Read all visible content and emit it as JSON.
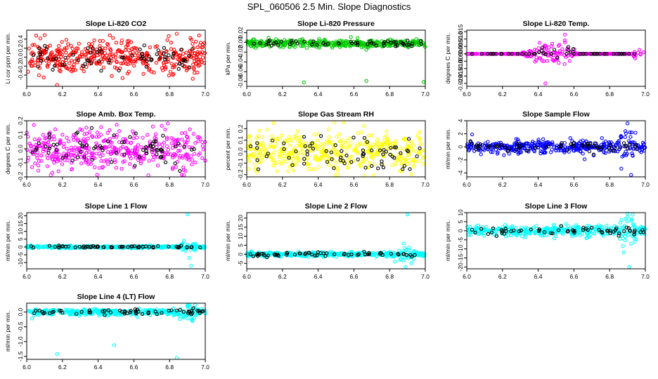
{
  "main_title": "SPL_060506  2.5 Min. Slope Diagnostics",
  "chart_data": [
    {
      "type": "scatter",
      "title": "Slope Li-820 CO2",
      "ylabel": "Li cor ppm per min.",
      "xlim": [
        6.0,
        7.0
      ],
      "xticks": [
        "6.0",
        "6.2",
        "6.4",
        "6.6",
        "6.8",
        "7.0"
      ],
      "ylim": [
        -0.65,
        0.6
      ],
      "yticks": [
        -0.4,
        -0.2,
        0.0,
        0.2,
        0.4
      ],
      "ytick_labels": [
        "-0.4",
        "-0.2",
        "0.0",
        "0.2",
        "0.4"
      ],
      "color": "#ff0000",
      "n_points": 420,
      "n_black": 70,
      "base_std": 0.18,
      "shape": "noise",
      "outliers": [
        {
          "x": 6.17,
          "y": -0.62
        },
        {
          "x": 6.84,
          "y": 0.52
        },
        {
          "x": 6.93,
          "y": -0.48
        }
      ]
    },
    {
      "type": "scatter",
      "title": "Slope Li-820 Pressure",
      "ylabel": "kPa per min.",
      "xlim": [
        6.0,
        7.0
      ],
      "xticks": [
        "6.0",
        "6.2",
        "6.4",
        "6.6",
        "6.8",
        "7.0"
      ],
      "ylim": [
        -0.09,
        0.025
      ],
      "yticks": [
        -0.08,
        -0.06,
        -0.04,
        -0.02,
        0.0,
        0.02
      ],
      "ytick_labels": [
        "-0.08",
        "-0.06",
        "-0.04",
        "-0.02",
        "0.00",
        "0.02"
      ],
      "color": "#00cc00",
      "n_points": 380,
      "n_black": 55,
      "base_std": 0.004,
      "shape": "pressure",
      "outliers": [
        {
          "x": 6.32,
          "y": -0.082
        },
        {
          "x": 6.67,
          "y": -0.079
        },
        {
          "x": 6.99,
          "y": -0.081
        }
      ]
    },
    {
      "type": "scatter",
      "title": "Slope Li-820 Temp.",
      "ylabel": "degrees C per min.",
      "xlim": [
        6.0,
        7.0
      ],
      "xticks": [
        "6.0",
        "6.2",
        "6.4",
        "6.6",
        "6.8",
        "7.0"
      ],
      "ylim": [
        -0.022,
        0.016
      ],
      "yticks": [
        -0.02,
        -0.015,
        -0.01,
        -0.005,
        0.0,
        0.005,
        0.01,
        0.015
      ],
      "ytick_labels": [
        "-0.020",
        "-0.015",
        "-0.010",
        "-0.005",
        "0.000",
        "0.005",
        "0.010",
        "0.015"
      ],
      "color": "#ff00ff",
      "n_points": 300,
      "n_black": 60,
      "base_std": 0.0,
      "shape": "temp",
      "outliers": [
        {
          "x": 6.44,
          "y": -0.02
        },
        {
          "x": 6.55,
          "y": 0.013
        }
      ]
    },
    {
      "type": "scatter",
      "title": "Slope Amb. Box Temp.",
      "ylabel": "degrees C per min.",
      "xlim": [
        6.0,
        7.0
      ],
      "xticks": [
        "6.0",
        "6.2",
        "6.4",
        "6.6",
        "6.8",
        "7.0"
      ],
      "ylim": [
        -0.2,
        0.2
      ],
      "yticks": [
        -0.2,
        -0.1,
        0.0,
        0.1,
        0.2
      ],
      "ytick_labels": [
        "-0.2",
        "-0.1",
        "0.0",
        "0.1",
        "0.2"
      ],
      "color": "#ff00ff",
      "n_points": 420,
      "n_black": 70,
      "base_std": 0.07,
      "shape": "noise",
      "outliers": [
        {
          "x": 6.04,
          "y": 0.17
        },
        {
          "x": 6.79,
          "y": 0.18
        }
      ]
    },
    {
      "type": "scatter",
      "title": "Slope Gas Stream RH",
      "ylabel": "percent per min.",
      "xlim": [
        6.0,
        7.0
      ],
      "xticks": [
        "6.0",
        "6.2",
        "6.4",
        "6.6",
        "6.8",
        "7.0"
      ],
      "ylim": [
        -0.22,
        0.27
      ],
      "yticks": [
        -0.2,
        -0.1,
        0.0,
        0.1,
        0.2
      ],
      "ytick_labels": [
        "-0.2",
        "-0.1",
        "0.0",
        "0.1",
        "0.2"
      ],
      "color": "#ffff00",
      "n_points": 420,
      "n_black": 70,
      "base_std": 0.09,
      "shape": "noise",
      "outliers": [
        {
          "x": 6.15,
          "y": 0.25
        },
        {
          "x": 6.66,
          "y": -0.21
        }
      ]
    },
    {
      "type": "scatter",
      "title": "Slope Sample Flow",
      "ylabel": "ml/min per min.",
      "xlim": [
        6.0,
        7.0
      ],
      "xticks": [
        "6.0",
        "6.2",
        "6.4",
        "6.6",
        "6.8",
        "7.0"
      ],
      "ylim": [
        -4.6,
        4.0
      ],
      "yticks": [
        -4,
        -2,
        0,
        2,
        4
      ],
      "ytick_labels": [
        "-4",
        "-2",
        "0",
        "2",
        "4"
      ],
      "color": "#0000ff",
      "n_points": 380,
      "n_black": 60,
      "base_std": 0.45,
      "shape": "flow",
      "outliers": [
        {
          "x": 6.9,
          "y": 3.6
        },
        {
          "x": 6.92,
          "y": -4.3
        },
        {
          "x": 6.03,
          "y": 1.9
        },
        {
          "x": 6.66,
          "y": -1.9
        }
      ]
    },
    {
      "type": "scatter",
      "title": "Slope Line 1 Flow",
      "ylabel": "ml/min per min.",
      "xlim": [
        6.0,
        7.0
      ],
      "xticks": [
        "6.0",
        "6.2",
        "6.4",
        "6.6",
        "6.8",
        "7.0"
      ],
      "ylim": [
        -14,
        22
      ],
      "yticks": [
        -10,
        -5,
        0,
        5,
        10,
        15,
        20
      ],
      "ytick_labels": [
        "-10",
        "-5",
        "0",
        "5",
        "10",
        "15",
        "20"
      ],
      "color": "#00ffff",
      "n_points": 380,
      "n_black": 60,
      "base_std": 0.4,
      "shape": "flow",
      "outliers": [
        {
          "x": 6.9,
          "y": 21
        },
        {
          "x": 6.92,
          "y": -12
        },
        {
          "x": 6.91,
          "y": -7
        },
        {
          "x": 6.88,
          "y": 4
        }
      ]
    },
    {
      "type": "scatter",
      "title": "Slope Line 2 Flow",
      "ylabel": "ml/min per min.",
      "xlim": [
        6.0,
        7.0
      ],
      "xticks": [
        "6.0",
        "6.2",
        "6.4",
        "6.6",
        "6.8",
        "7.0"
      ],
      "ylim": [
        -8,
        23
      ],
      "yticks": [
        -5,
        0,
        5,
        10,
        15,
        20
      ],
      "ytick_labels": [
        "-5",
        "0",
        "5",
        "10",
        "15",
        "20"
      ],
      "color": "#00ffff",
      "n_points": 380,
      "n_black": 60,
      "base_std": 0.6,
      "shape": "flow",
      "outliers": [
        {
          "x": 6.9,
          "y": 22
        },
        {
          "x": 6.89,
          "y": -7
        },
        {
          "x": 6.88,
          "y": 6
        },
        {
          "x": 6.83,
          "y": -4
        }
      ]
    },
    {
      "type": "scatter",
      "title": "Slope Line 3 Flow",
      "ylabel": "ml/min per min.",
      "xlim": [
        6.0,
        7.0
      ],
      "xticks": [
        "6.0",
        "6.2",
        "6.4",
        "6.6",
        "6.8",
        "7.0"
      ],
      "ylim": [
        -21,
        10
      ],
      "yticks": [
        -20,
        -15,
        -10,
        -5,
        0,
        5,
        10
      ],
      "ytick_labels": [
        "-20",
        "-15",
        "-10",
        "-5",
        "0",
        "5",
        "10"
      ],
      "color": "#00ffff",
      "n_points": 380,
      "n_black": 60,
      "base_std": 1.4,
      "shape": "flow",
      "outliers": [
        {
          "x": 6.9,
          "y": 9.5
        },
        {
          "x": 6.91,
          "y": -20
        },
        {
          "x": 6.88,
          "y": -12
        },
        {
          "x": 6.94,
          "y": -6
        }
      ]
    },
    {
      "type": "scatter",
      "title": "Slope Line 4 (LT) Flow",
      "ylabel": "ml/min per min.",
      "xlim": [
        6.0,
        7.0
      ],
      "xticks": [
        "6.0",
        "6.2",
        "6.4",
        "6.6",
        "6.8",
        "7.0"
      ],
      "ylim": [
        -1.6,
        0.3
      ],
      "yticks": [
        -1.5,
        -1.0,
        -0.5,
        0.0
      ],
      "ytick_labels": [
        "-1.5",
        "-1.0",
        "-0.5",
        "0.0"
      ],
      "color": "#00ffff",
      "n_points": 380,
      "n_black": 60,
      "base_std": 0.05,
      "shape": "flow",
      "outliers": [
        {
          "x": 6.17,
          "y": -1.42
        },
        {
          "x": 6.49,
          "y": -1.12
        },
        {
          "x": 6.84,
          "y": -1.55
        },
        {
          "x": 6.9,
          "y": 0.2
        },
        {
          "x": 6.03,
          "y": -0.22
        }
      ]
    }
  ]
}
